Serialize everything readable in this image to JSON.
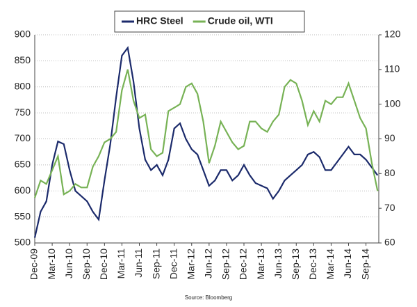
{
  "chart_data": {
    "type": "line",
    "categories": [
      "Dec-09",
      null,
      null,
      "Mar-10",
      null,
      null,
      "Jun-10",
      null,
      null,
      "Sep-10",
      null,
      null,
      "Dec-10",
      null,
      null,
      "Mar-11",
      null,
      null,
      "Jun-11",
      null,
      null,
      "Sep-11",
      null,
      null,
      "Dec-11",
      null,
      null,
      "Mar-12",
      null,
      null,
      "Jun-12",
      null,
      null,
      "Sep-12",
      null,
      null,
      "Dec-12",
      null,
      null,
      "Mar-13",
      null,
      null,
      "Jun-13",
      null,
      null,
      "Sep-13",
      null,
      null,
      "Dec-13",
      null,
      null,
      "Mar-14",
      null,
      null,
      "Jun-14",
      null,
      null,
      "Sep-14",
      null,
      null
    ],
    "series": [
      {
        "name": "HRC Steel",
        "color": "#1b2a6b",
        "values": [
          510,
          560,
          580,
          650,
          695,
          690,
          640,
          600,
          590,
          580,
          560,
          545,
          620,
          690,
          780,
          860,
          875,
          810,
          720,
          660,
          640,
          650,
          630,
          660,
          720,
          730,
          700,
          680,
          670,
          640,
          610,
          620,
          640,
          640,
          620,
          630,
          650,
          630,
          615,
          610,
          605,
          585,
          600,
          620,
          630,
          640,
          650,
          670,
          675,
          665,
          640,
          640,
          655,
          670,
          685,
          670,
          670,
          660,
          645,
          630
        ]
      },
      {
        "name": "Crude oil, WTI",
        "color": "#77b255",
        "axis": "y2",
        "values": [
          73,
          78,
          77,
          81,
          85,
          74,
          75,
          77,
          76,
          76,
          82,
          85,
          89,
          90,
          92,
          104,
          110,
          101,
          96,
          97,
          87,
          85,
          86,
          98,
          99,
          100,
          105,
          106,
          103,
          95,
          83,
          88,
          95,
          92,
          89,
          87,
          88,
          95,
          95,
          93,
          92,
          95,
          97,
          105,
          107,
          106,
          101,
          94,
          98,
          95,
          101,
          100,
          102,
          102,
          106,
          101,
          96,
          93,
          83,
          75
        ]
      }
    ],
    "ylim": [
      500,
      900
    ],
    "yticks": [
      500,
      550,
      600,
      650,
      700,
      750,
      800,
      850,
      900
    ],
    "y2lim": [
      60,
      120
    ],
    "y2ticks": [
      60,
      70,
      80,
      90,
      100,
      110,
      120
    ],
    "grid": true,
    "legend": "top",
    "source": "Source: Bloomberg"
  }
}
